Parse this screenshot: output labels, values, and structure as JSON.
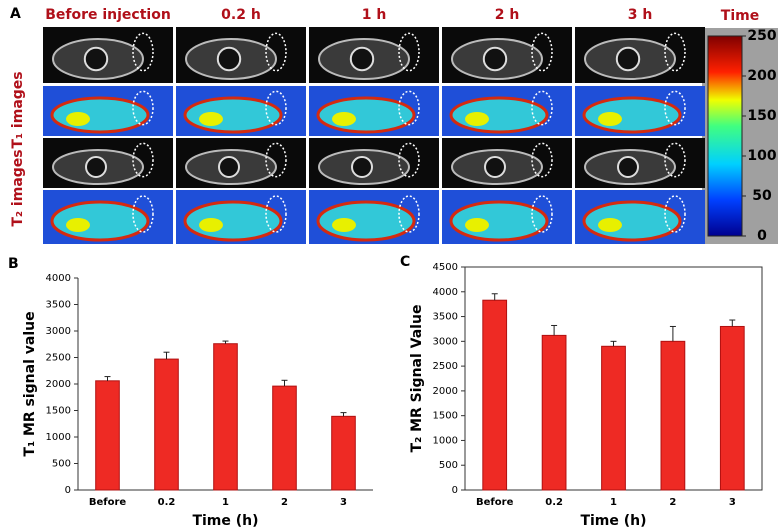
{
  "panel_a": {
    "label": "A",
    "columns": [
      "Before injection",
      "0.2 h",
      "1 h",
      "2 h",
      "3 h"
    ],
    "row_labels": [
      "T₁ images",
      "T₂ images"
    ],
    "colorbar": {
      "title": "Time",
      "ylim": [
        0,
        250
      ],
      "yticks": [
        0,
        50,
        100,
        150,
        200,
        250
      ]
    }
  },
  "chart_data": [
    {
      "type": "bar",
      "label": "B",
      "xlabel": "Time (h)",
      "ylabel": "T₁ MR signal value",
      "categories": [
        "Before",
        "0.2",
        "1",
        "2",
        "3"
      ],
      "values": [
        2060,
        2470,
        2760,
        1960,
        1390
      ],
      "errors": [
        80,
        130,
        50,
        110,
        70
      ],
      "color": "#ee2a24",
      "ylim": [
        0,
        4000
      ],
      "yticks": [
        0,
        500,
        1000,
        1500,
        2000,
        2500,
        3000,
        3500,
        4000
      ],
      "frame": false
    },
    {
      "type": "bar",
      "label": "C",
      "xlabel": "Time (h)",
      "ylabel": "T₂ MR Signal Value",
      "categories": [
        "Before",
        "0.2",
        "1",
        "2",
        "3"
      ],
      "values": [
        3830,
        3120,
        2900,
        3000,
        3300
      ],
      "errors": [
        130,
        200,
        100,
        300,
        130
      ],
      "color": "#ee2a24",
      "ylim": [
        0,
        4500
      ],
      "yticks": [
        0,
        500,
        1000,
        1500,
        2000,
        2500,
        3000,
        3500,
        4000,
        4500
      ],
      "frame": true
    }
  ]
}
